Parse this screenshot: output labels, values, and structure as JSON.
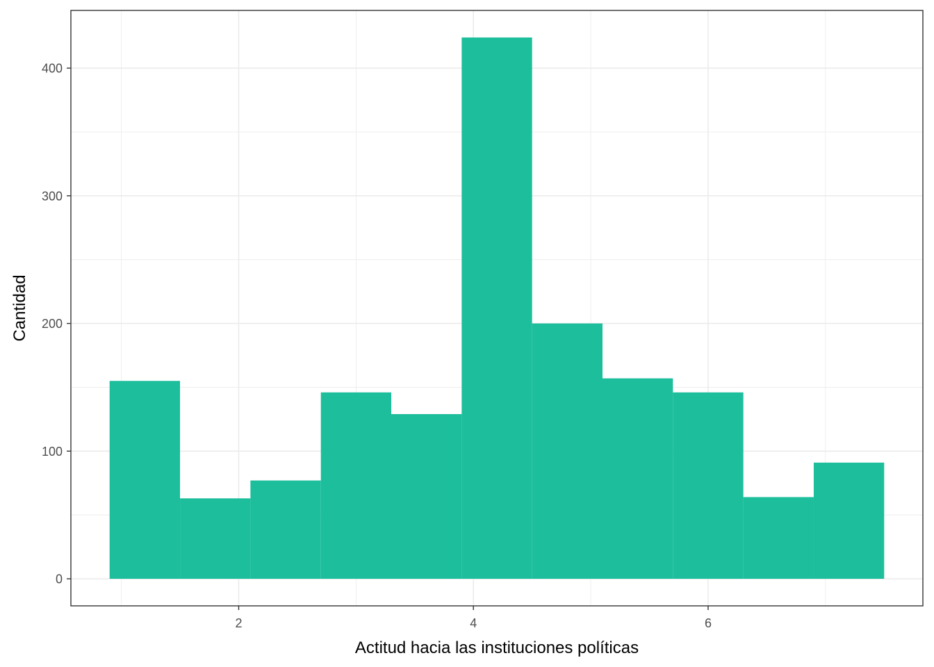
{
  "chart_data": {
    "type": "bar",
    "subtype": "histogram",
    "title": "",
    "xlabel": "Actitud hacia las instituciones políticas",
    "ylabel": "Cantidad",
    "bins": [
      {
        "x0": 0.9,
        "x1": 1.5,
        "count": 155
      },
      {
        "x0": 1.5,
        "x1": 2.1,
        "count": 63
      },
      {
        "x0": 2.1,
        "x1": 2.7,
        "count": 77
      },
      {
        "x0": 2.7,
        "x1": 3.3,
        "count": 146
      },
      {
        "x0": 3.3,
        "x1": 3.9,
        "count": 129
      },
      {
        "x0": 3.9,
        "x1": 4.5,
        "count": 424
      },
      {
        "x0": 4.5,
        "x1": 5.1,
        "count": 200
      },
      {
        "x0": 5.1,
        "x1": 5.7,
        "count": 157
      },
      {
        "x0": 5.7,
        "x1": 6.3,
        "count": 146
      },
      {
        "x0": 6.3,
        "x1": 6.9,
        "count": 64
      },
      {
        "x0": 6.9,
        "x1": 7.5,
        "count": 91
      }
    ],
    "x_ticks": [
      2,
      4,
      6
    ],
    "x_tick_labels": [
      "2",
      "4",
      "6"
    ],
    "y_ticks": [
      0,
      100,
      200,
      300,
      400
    ],
    "y_tick_labels": [
      "0",
      "100",
      "200",
      "300",
      "400"
    ],
    "xlim": [
      0.57,
      7.83
    ],
    "ylim": [
      -21.2,
      445.2
    ],
    "grid": true,
    "legend": "none",
    "colors": {
      "bar": "#1cbe9c",
      "grid": "#ebebeb",
      "panel_border": "#333333"
    }
  }
}
